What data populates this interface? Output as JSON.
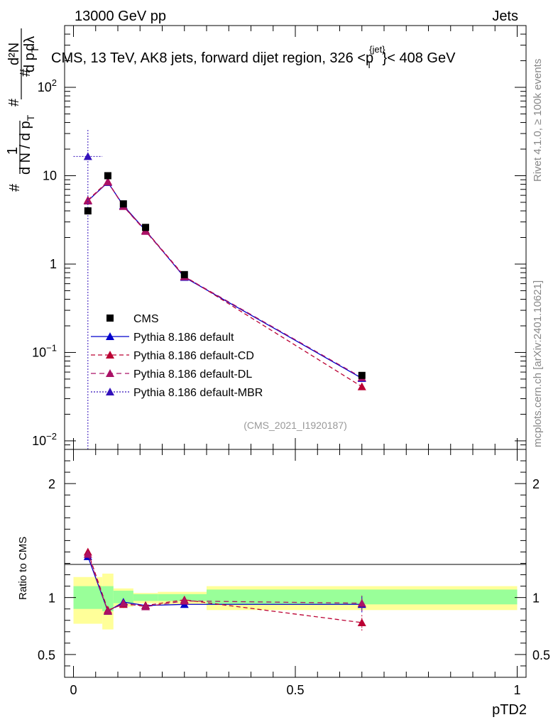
{
  "header": {
    "left": "13000 GeV pp",
    "right": "Jets",
    "side_top": "Rivet 4.1.0, ≥ 100k events",
    "side_bottom": "mcplots.cern.ch [arXiv:2401.10621]"
  },
  "chart_data": [
    {
      "type": "line",
      "title": "CMS, 13 TeV, AK8 jets, forward dijet region, 326 <p_T^{jet}< 408 GeV",
      "title_parts": {
        "main": "CMS, 13 TeV, AK8 jets, forward dijet region, 326 <p",
        "sub": "T",
        "sup": "{jet}",
        "end": "}< 408 GeV"
      },
      "watermark": "(CMS_2021_I1920187)",
      "ylabel": "# 1/(dN/dp_T) # d²N/(dp_T dλ)",
      "ylabel_parts": {
        "a": "#",
        "b": "1",
        "c": "d N / d p",
        "c_sub": "T",
        "d": "#",
        "e": "d²N",
        "e_sub_T": "T",
        "f": "d p",
        "g": "dλ"
      },
      "yscale": "log",
      "ylim": [
        0.008,
        500
      ],
      "xlim": [
        -0.02,
        1.02
      ],
      "yticks": [
        {
          "v": 0.01,
          "b": "10",
          "e": "−2"
        },
        {
          "v": 0.1,
          "b": "10",
          "e": "−1"
        },
        {
          "v": 1,
          "b": "1",
          "e": ""
        },
        {
          "v": 10,
          "b": "10",
          "e": ""
        },
        {
          "v": 100,
          "b": "10",
          "e": "2"
        }
      ],
      "x": [
        0.0325,
        0.0775,
        0.1125,
        0.1625,
        0.25,
        0.65
      ],
      "xerr": [
        0.0325,
        0.0125,
        0.0125,
        0.0375,
        0.05,
        0.35
      ],
      "data": {
        "name": "CMS",
        "values": [
          4.0,
          10.0,
          4.8,
          2.6,
          0.76,
          0.055
        ]
      },
      "series": [
        {
          "name": "Pythia 8.186 default",
          "color": "#0000cc",
          "dash": "",
          "values": [
            5.2,
            8.4,
            4.6,
            2.4,
            0.71,
            0.051
          ]
        },
        {
          "name": "Pythia 8.186 default-CD",
          "color": "#bb0033",
          "dash": "6,4",
          "values": [
            5.3,
            8.6,
            4.5,
            2.4,
            0.73,
            0.041
          ]
        },
        {
          "name": "Pythia 8.186 default-DL",
          "color": "#aa1166",
          "dash": "7,5",
          "values": [
            5.2,
            8.5,
            4.5,
            2.35,
            0.72,
            0.052
          ]
        },
        {
          "name": "Pythia 8.186 default-MBR",
          "color": "#3311bb",
          "dash": "2,2",
          "values": [
            16.5,
            null,
            null,
            null,
            null,
            null
          ],
          "yerr_low": [
            16.49
          ],
          "yerr_high": [
            17.5
          ]
        }
      ]
    },
    {
      "type": "line",
      "ylabel": "Ratio to CMS",
      "xlabel": "pTD2",
      "ylim": [
        0.3,
        2.3
      ],
      "xlim": [
        -0.02,
        1.02
      ],
      "yticks": [
        0.5,
        1,
        2
      ],
      "ytick_labels": [
        "0.5",
        "1",
        "2"
      ],
      "xticks": [
        0,
        0.5,
        1
      ],
      "xtick_labels": [
        "0",
        "0.5",
        "1"
      ],
      "x": [
        0.0325,
        0.0775,
        0.1125,
        0.1625,
        0.25,
        0.65
      ],
      "bands": {
        "edges": [
          0,
          0.065,
          0.09,
          0.135,
          0.19,
          0.3,
          1.0
        ],
        "stat_lo": [
          0.9,
          0.88,
          0.95,
          0.97,
          0.97,
          0.94
        ],
        "stat_hi": [
          1.1,
          1.1,
          1.06,
          1.03,
          1.03,
          1.07
        ],
        "total_lo": [
          0.77,
          0.72,
          0.92,
          0.95,
          0.94,
          0.89
        ],
        "total_hi": [
          1.18,
          1.21,
          1.08,
          1.04,
          1.05,
          1.1
        ],
        "stat_color": "#99ff99",
        "total_color": "#ffff99"
      },
      "series": [
        {
          "name": "Pythia 8.186 default",
          "color": "#0000cc",
          "dash": "",
          "values": [
            1.36,
            0.88,
            0.96,
            0.93,
            0.94,
            0.94
          ]
        },
        {
          "name": "Pythia 8.186 default-CD",
          "color": "#bb0033",
          "dash": "6,4",
          "values": [
            1.4,
            0.89,
            0.94,
            0.93,
            0.98,
            0.78
          ]
        },
        {
          "name": "Pythia 8.186 default-DL",
          "color": "#aa1166",
          "dash": "7,5",
          "values": [
            1.38,
            0.88,
            0.95,
            0.92,
            0.97,
            0.95
          ]
        }
      ]
    }
  ]
}
